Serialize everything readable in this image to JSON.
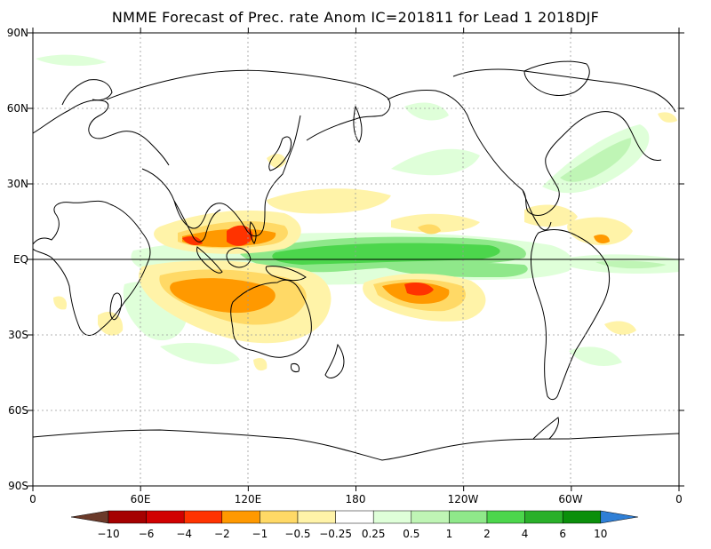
{
  "title": "NMME Forecast of Prec. rate Anom IC=201811 for Lead 1 2018DJF",
  "lat_ticks": [
    "90N",
    "60N",
    "30N",
    "EQ",
    "30S",
    "60S",
    "90S"
  ],
  "lon_ticks": [
    "0",
    "60E",
    "120E",
    "180",
    "120W",
    "60W",
    "0"
  ],
  "colorbar": {
    "labels": [
      "−10",
      "−6",
      "−4",
      "−2",
      "−1",
      "−0.5",
      "−0.25",
      "0.25",
      "0.5",
      "1",
      "2",
      "4",
      "6",
      "10"
    ],
    "colors": [
      "#6b3a2a",
      "#a50000",
      "#d10000",
      "#ff3300",
      "#ff9900",
      "#ffd966",
      "#fff3a8",
      "#ffffff",
      "#dfffd9",
      "#bff5b5",
      "#8fe88a",
      "#4cd64c",
      "#2ab02a",
      "#0b8f0b",
      "#2f7fd6"
    ]
  },
  "colors": {
    "dry_strong": "#d10000",
    "dry_med": "#ff3300",
    "dry": "#ff9900",
    "dry_light": "#ffd966",
    "dry_faint": "#fff3a8",
    "wet_faint": "#dfffd9",
    "wet_light": "#bff5b5",
    "wet": "#8fe88a",
    "wet_med": "#4cd64c"
  }
}
